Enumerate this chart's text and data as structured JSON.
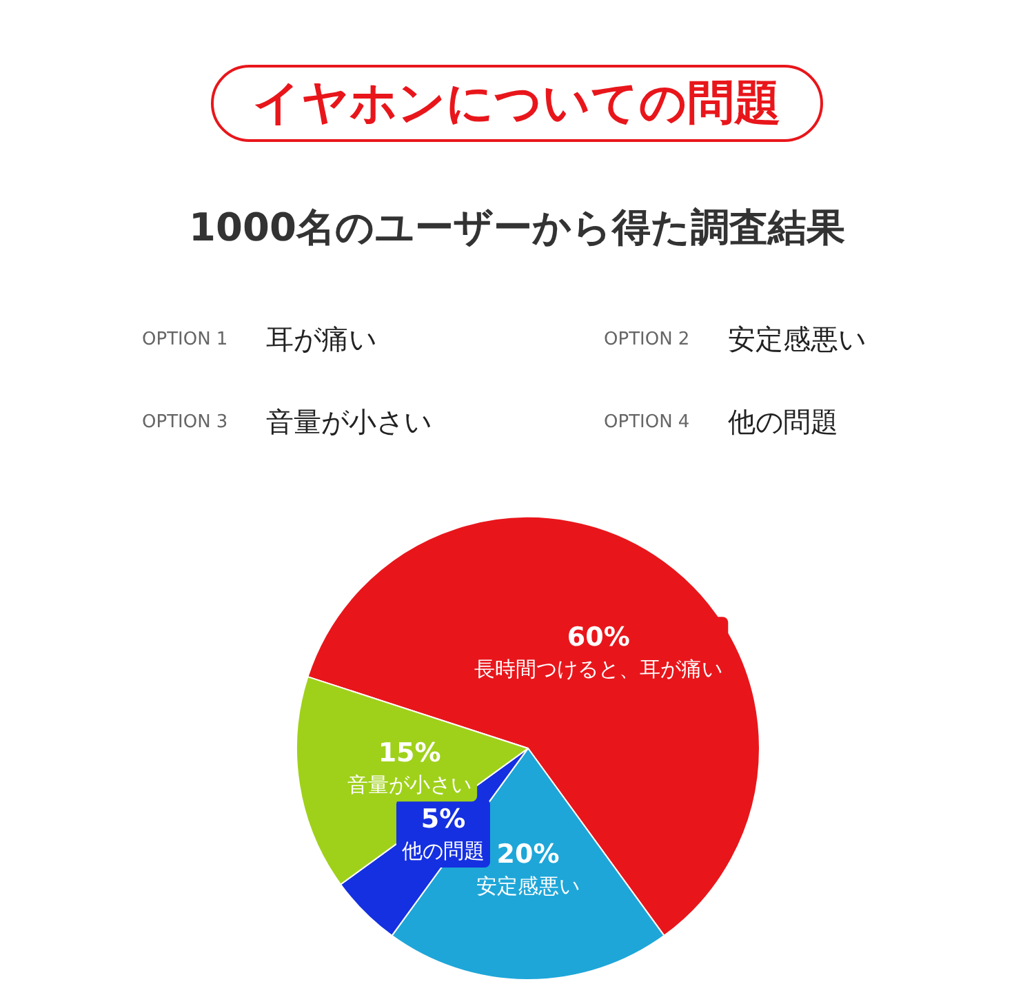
{
  "chart_data": {
    "type": "pie",
    "title": "イヤホンについての問題",
    "subtitle": "1000名のユーザーから得た調査結果",
    "annotations": [
      "OPTION 1",
      "耳が痛い",
      "OPTION 2",
      "安定感悪い",
      "OPTION 3",
      "音量が小さい",
      "OPTION 4",
      "他の問題"
    ],
    "categories": [
      "長時間つけると、耳が痛い",
      "安定感悪い",
      "他の問題",
      "音量が小さい"
    ],
    "values": [
      60,
      20,
      5,
      15
    ],
    "value_labels": [
      "60%",
      "20%",
      "5%",
      "15%"
    ],
    "colors": [
      "#e8161b",
      "#1ea6d8",
      "#1530e0",
      "#9fd11a"
    ]
  }
}
